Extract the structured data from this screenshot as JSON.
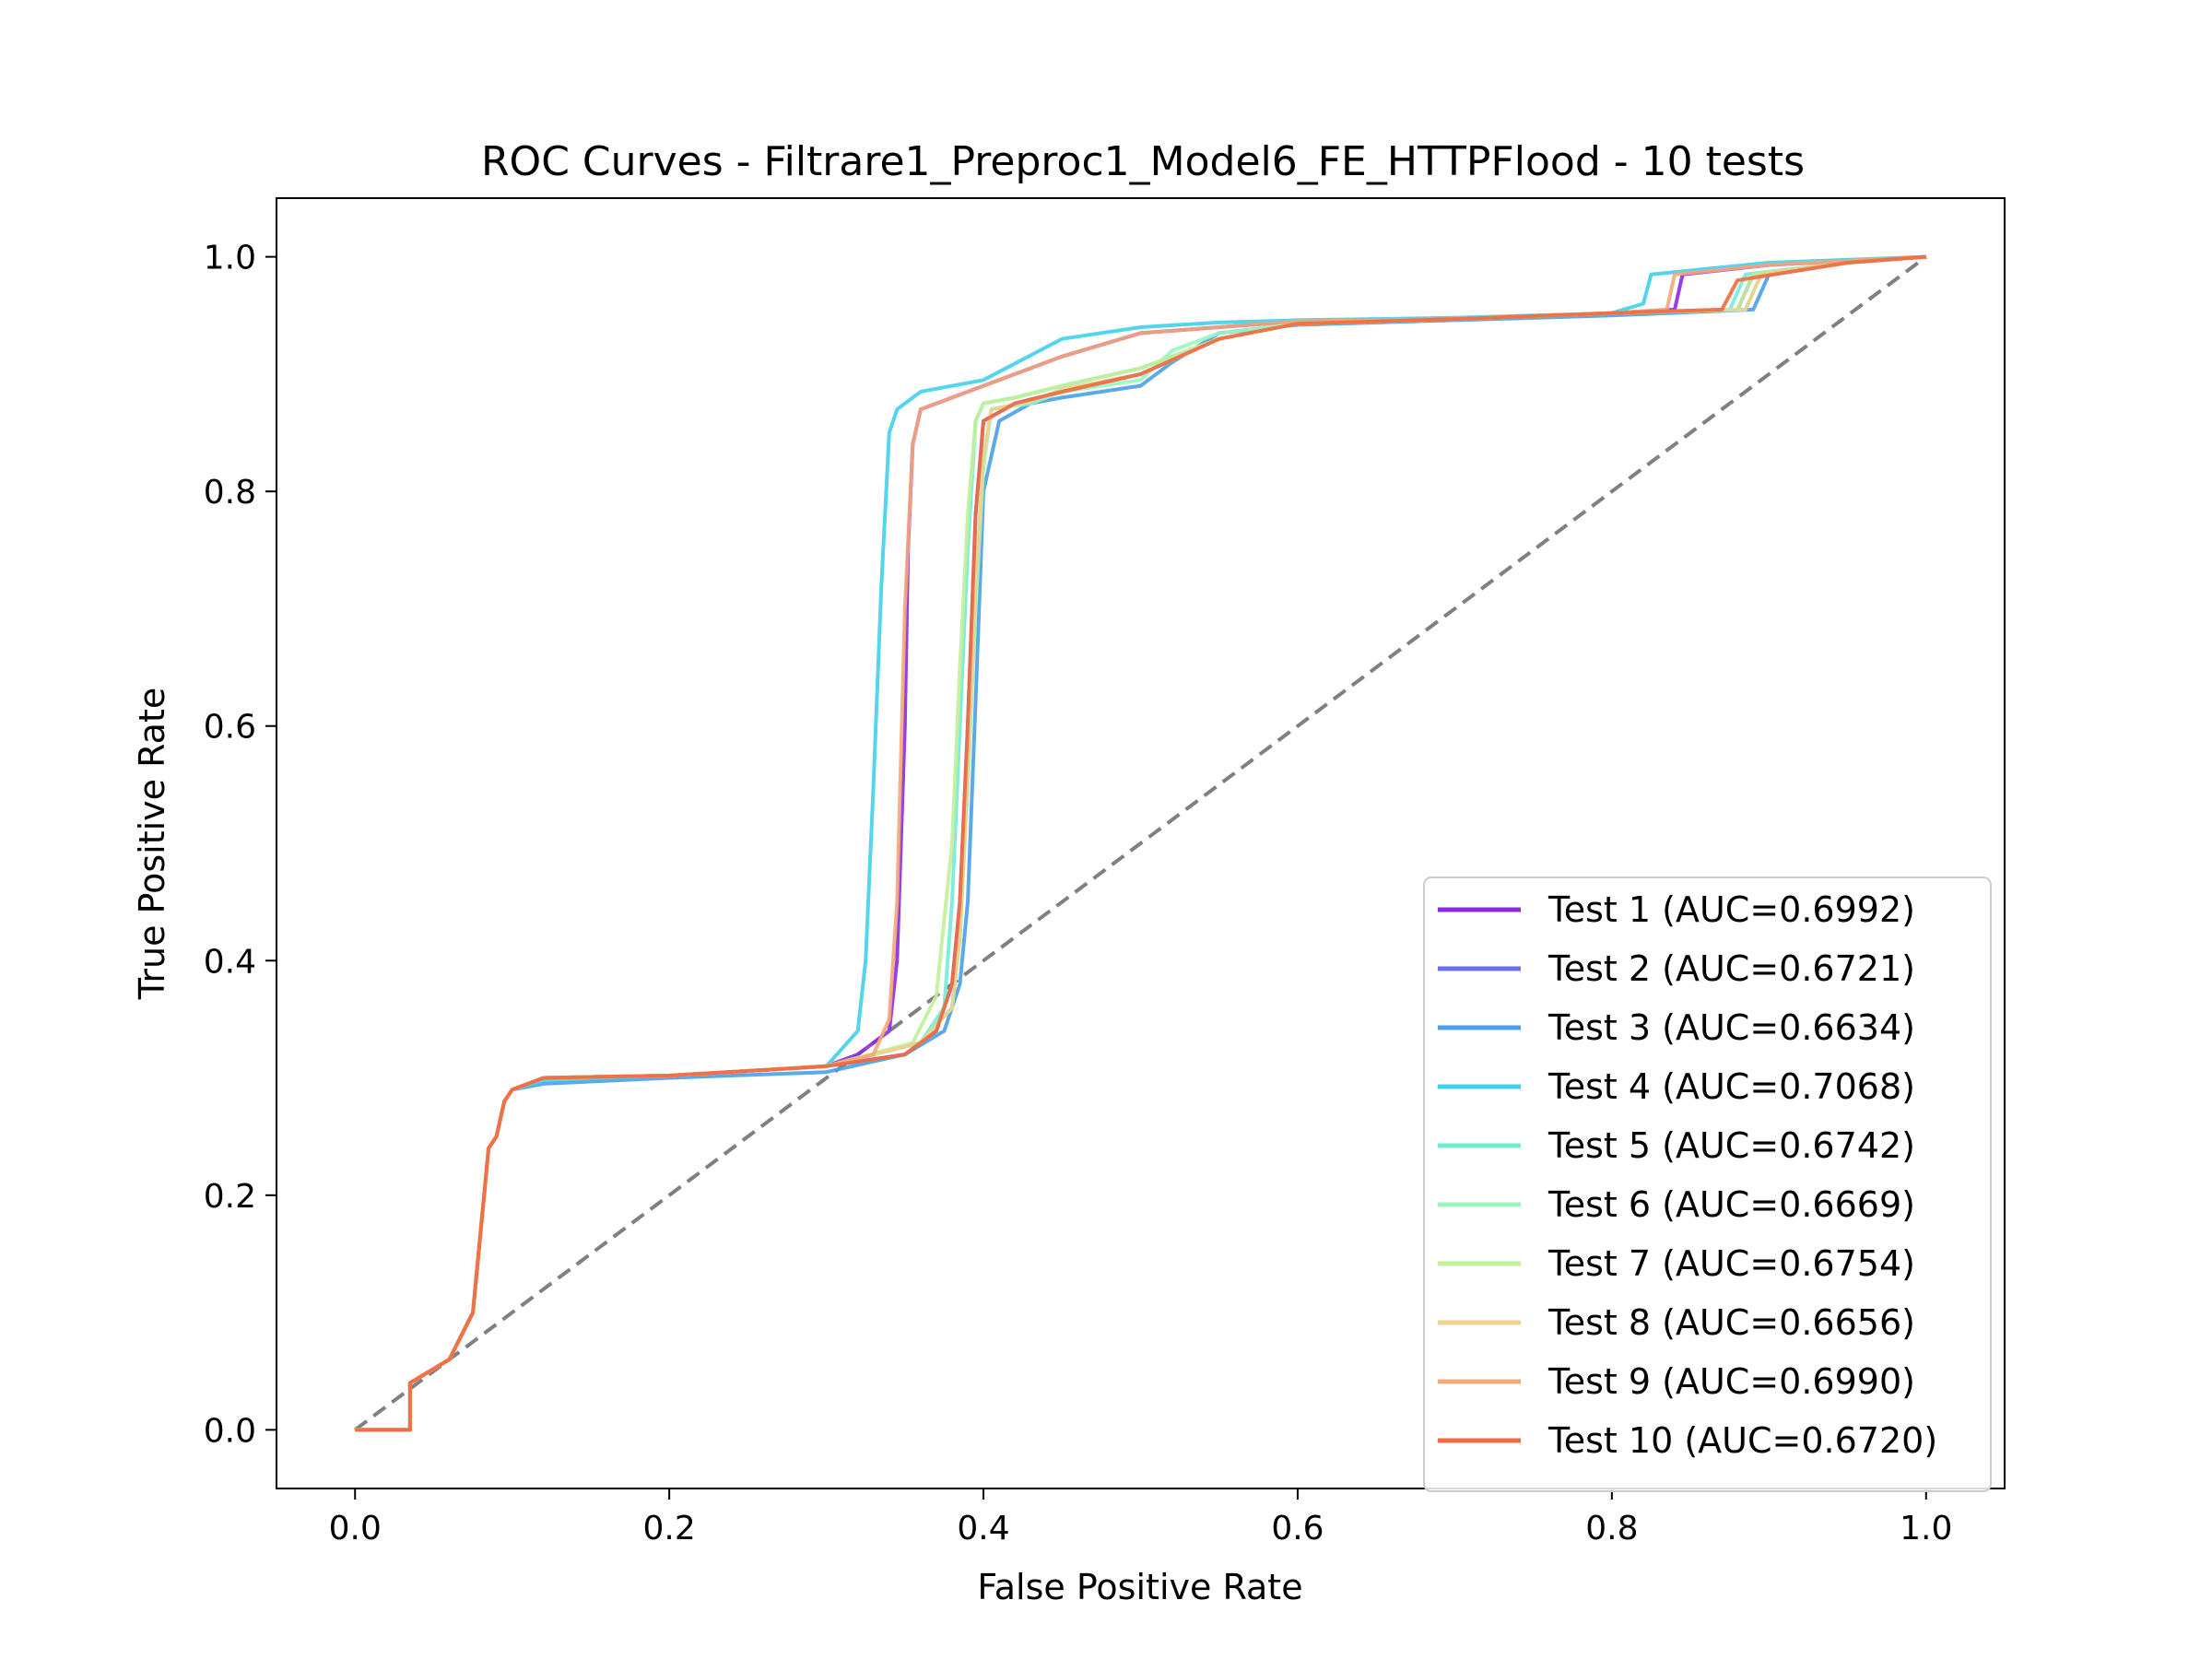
{
  "chart_data": {
    "type": "line",
    "title": "ROC Curves - Filtrare1_Preproc1_Model6_FE_HTTPFlood - 10 tests",
    "xlabel": "False Positive Rate",
    "ylabel": "True Positive Rate",
    "xlim": [
      -0.05,
      1.05
    ],
    "ylim": [
      -0.05,
      1.05
    ],
    "xticks": [
      "0.0",
      "0.2",
      "0.4",
      "0.6",
      "0.8",
      "1.0"
    ],
    "yticks": [
      "0.0",
      "0.2",
      "0.4",
      "0.6",
      "0.8",
      "1.0"
    ],
    "legend_position": "lower-right",
    "grid": false,
    "reference_line": {
      "x": [
        0,
        1
      ],
      "y": [
        0,
        1
      ],
      "color": "#808080",
      "style": "dashed"
    },
    "series": [
      {
        "name": "Test 1 (AUC=0.6992)",
        "color": "#8a2be2",
        "x": [
          0,
          0.035,
          0.035,
          0.06,
          0.075,
          0.08,
          0.085,
          0.09,
          0.095,
          0.1,
          0.12,
          0.2,
          0.3,
          0.32,
          0.34,
          0.345,
          0.35,
          0.352,
          0.355,
          0.36,
          0.38,
          0.4,
          0.45,
          0.5,
          0.55,
          0.6,
          0.7,
          0.8,
          0.84,
          0.845,
          0.9,
          1.0
        ],
        "y": [
          0,
          0,
          0.04,
          0.06,
          0.1,
          0.17,
          0.24,
          0.25,
          0.28,
          0.29,
          0.3,
          0.302,
          0.31,
          0.32,
          0.34,
          0.4,
          0.6,
          0.75,
          0.84,
          0.87,
          0.88,
          0.89,
          0.915,
          0.935,
          0.94,
          0.945,
          0.947,
          0.952,
          0.955,
          0.985,
          0.993,
          1.0
        ]
      },
      {
        "name": "Test 2 (AUC=0.6721)",
        "color": "#6f6ff2",
        "x": [
          0,
          0.035,
          0.035,
          0.06,
          0.075,
          0.08,
          0.085,
          0.09,
          0.095,
          0.1,
          0.12,
          0.2,
          0.3,
          0.35,
          0.37,
          0.38,
          0.385,
          0.39,
          0.395,
          0.4,
          0.42,
          0.45,
          0.5,
          0.55,
          0.6,
          0.7,
          0.8,
          0.88,
          0.89,
          0.95,
          1.0
        ],
        "y": [
          0,
          0,
          0.04,
          0.06,
          0.1,
          0.17,
          0.24,
          0.25,
          0.28,
          0.29,
          0.3,
          0.302,
          0.31,
          0.32,
          0.34,
          0.38,
          0.45,
          0.6,
          0.78,
          0.86,
          0.875,
          0.885,
          0.9,
          0.93,
          0.943,
          0.947,
          0.952,
          0.955,
          0.985,
          0.995,
          1.0
        ]
      },
      {
        "name": "Test 3 (AUC=0.6634)",
        "color": "#4aa0e8",
        "x": [
          0,
          0.035,
          0.035,
          0.06,
          0.075,
          0.08,
          0.085,
          0.09,
          0.095,
          0.1,
          0.12,
          0.2,
          0.3,
          0.35,
          0.375,
          0.385,
          0.39,
          0.395,
          0.4,
          0.41,
          0.43,
          0.45,
          0.5,
          0.52,
          0.55,
          0.6,
          0.7,
          0.8,
          0.89,
          0.9,
          0.95,
          1.0
        ],
        "y": [
          0,
          0,
          0.04,
          0.06,
          0.1,
          0.17,
          0.24,
          0.25,
          0.28,
          0.29,
          0.295,
          0.3,
          0.305,
          0.32,
          0.34,
          0.38,
          0.45,
          0.62,
          0.8,
          0.86,
          0.875,
          0.88,
          0.89,
          0.91,
          0.935,
          0.942,
          0.946,
          0.95,
          0.955,
          0.985,
          0.995,
          1.0
        ]
      },
      {
        "name": "Test 4 (AUC=0.7068)",
        "color": "#40d0ec",
        "x": [
          0,
          0.035,
          0.035,
          0.06,
          0.075,
          0.08,
          0.085,
          0.09,
          0.095,
          0.1,
          0.12,
          0.2,
          0.3,
          0.32,
          0.325,
          0.33,
          0.335,
          0.34,
          0.345,
          0.355,
          0.36,
          0.4,
          0.45,
          0.5,
          0.55,
          0.6,
          0.7,
          0.8,
          0.82,
          0.825,
          0.9,
          1.0
        ],
        "y": [
          0,
          0,
          0.04,
          0.06,
          0.1,
          0.17,
          0.24,
          0.25,
          0.28,
          0.29,
          0.298,
          0.302,
          0.31,
          0.34,
          0.4,
          0.55,
          0.72,
          0.85,
          0.87,
          0.88,
          0.885,
          0.895,
          0.93,
          0.94,
          0.944,
          0.946,
          0.948,
          0.952,
          0.96,
          0.985,
          0.995,
          1.0
        ]
      },
      {
        "name": "Test 5 (AUC=0.6742)",
        "color": "#72ecd6",
        "x": [
          0,
          0.035,
          0.035,
          0.06,
          0.075,
          0.08,
          0.085,
          0.09,
          0.095,
          0.1,
          0.12,
          0.2,
          0.3,
          0.36,
          0.375,
          0.38,
          0.385,
          0.39,
          0.395,
          0.4,
          0.42,
          0.45,
          0.5,
          0.55,
          0.6,
          0.7,
          0.8,
          0.875,
          0.885,
          0.95,
          1.0
        ],
        "y": [
          0,
          0,
          0.04,
          0.06,
          0.1,
          0.17,
          0.24,
          0.25,
          0.28,
          0.29,
          0.3,
          0.302,
          0.31,
          0.33,
          0.36,
          0.45,
          0.6,
          0.75,
          0.86,
          0.875,
          0.88,
          0.89,
          0.905,
          0.93,
          0.943,
          0.947,
          0.952,
          0.955,
          0.985,
          0.995,
          1.0
        ]
      },
      {
        "name": "Test 6 (AUC=0.6669)",
        "color": "#9cf5c0",
        "x": [
          0,
          0.035,
          0.035,
          0.06,
          0.075,
          0.08,
          0.085,
          0.09,
          0.095,
          0.1,
          0.12,
          0.2,
          0.3,
          0.36,
          0.38,
          0.385,
          0.39,
          0.395,
          0.4,
          0.405,
          0.43,
          0.45,
          0.5,
          0.52,
          0.55,
          0.6,
          0.7,
          0.8,
          0.885,
          0.895,
          0.95,
          1.0
        ],
        "y": [
          0,
          0,
          0.04,
          0.06,
          0.1,
          0.17,
          0.24,
          0.25,
          0.28,
          0.29,
          0.3,
          0.302,
          0.31,
          0.33,
          0.36,
          0.42,
          0.55,
          0.7,
          0.82,
          0.87,
          0.875,
          0.885,
          0.895,
          0.92,
          0.935,
          0.943,
          0.947,
          0.952,
          0.955,
          0.985,
          0.995,
          1.0
        ]
      },
      {
        "name": "Test 7 (AUC=0.6754)",
        "color": "#c2ef9a",
        "x": [
          0,
          0.035,
          0.035,
          0.06,
          0.075,
          0.08,
          0.085,
          0.09,
          0.095,
          0.1,
          0.12,
          0.2,
          0.3,
          0.355,
          0.37,
          0.38,
          0.385,
          0.39,
          0.395,
          0.4,
          0.42,
          0.45,
          0.5,
          0.55,
          0.6,
          0.7,
          0.8,
          0.88,
          0.89,
          0.95,
          1.0
        ],
        "y": [
          0,
          0,
          0.04,
          0.06,
          0.1,
          0.17,
          0.24,
          0.25,
          0.28,
          0.29,
          0.3,
          0.302,
          0.31,
          0.33,
          0.37,
          0.5,
          0.65,
          0.78,
          0.86,
          0.875,
          0.88,
          0.89,
          0.905,
          0.93,
          0.943,
          0.947,
          0.952,
          0.955,
          0.985,
          0.995,
          1.0
        ]
      },
      {
        "name": "Test 8 (AUC=0.6656)",
        "color": "#ecd28e",
        "x": [
          0,
          0.035,
          0.035,
          0.06,
          0.075,
          0.08,
          0.085,
          0.09,
          0.095,
          0.1,
          0.12,
          0.2,
          0.3,
          0.36,
          0.38,
          0.385,
          0.39,
          0.395,
          0.4,
          0.405,
          0.43,
          0.45,
          0.5,
          0.55,
          0.6,
          0.7,
          0.8,
          0.885,
          0.895,
          0.95,
          1.0
        ],
        "y": [
          0,
          0,
          0.04,
          0.06,
          0.1,
          0.17,
          0.24,
          0.25,
          0.28,
          0.29,
          0.3,
          0.302,
          0.31,
          0.33,
          0.36,
          0.42,
          0.56,
          0.72,
          0.83,
          0.87,
          0.877,
          0.887,
          0.9,
          0.93,
          0.943,
          0.947,
          0.952,
          0.955,
          0.985,
          0.995,
          1.0
        ]
      },
      {
        "name": "Test 9 (AUC=0.6990)",
        "color": "#f4a878",
        "x": [
          0,
          0.035,
          0.035,
          0.06,
          0.075,
          0.08,
          0.085,
          0.09,
          0.095,
          0.1,
          0.12,
          0.2,
          0.3,
          0.33,
          0.34,
          0.345,
          0.35,
          0.355,
          0.36,
          0.38,
          0.4,
          0.45,
          0.5,
          0.55,
          0.6,
          0.7,
          0.8,
          0.835,
          0.84,
          0.9,
          1.0
        ],
        "y": [
          0,
          0,
          0.04,
          0.06,
          0.1,
          0.17,
          0.24,
          0.25,
          0.28,
          0.29,
          0.3,
          0.302,
          0.31,
          0.32,
          0.35,
          0.45,
          0.7,
          0.84,
          0.87,
          0.88,
          0.89,
          0.915,
          0.935,
          0.94,
          0.945,
          0.947,
          0.952,
          0.955,
          0.985,
          0.993,
          1.0
        ]
      },
      {
        "name": "Test 10 (AUC=0.6720)",
        "color": "#f06a40",
        "x": [
          0,
          0.035,
          0.035,
          0.06,
          0.075,
          0.08,
          0.085,
          0.09,
          0.095,
          0.1,
          0.12,
          0.2,
          0.3,
          0.35,
          0.37,
          0.38,
          0.385,
          0.39,
          0.395,
          0.4,
          0.42,
          0.45,
          0.5,
          0.55,
          0.6,
          0.7,
          0.8,
          0.87,
          0.88,
          0.95,
          1.0
        ],
        "y": [
          0,
          0,
          0.04,
          0.06,
          0.1,
          0.17,
          0.24,
          0.25,
          0.28,
          0.29,
          0.3,
          0.302,
          0.31,
          0.32,
          0.34,
          0.38,
          0.45,
          0.6,
          0.78,
          0.86,
          0.875,
          0.885,
          0.9,
          0.93,
          0.943,
          0.947,
          0.952,
          0.955,
          0.98,
          0.995,
          1.0
        ]
      }
    ]
  }
}
